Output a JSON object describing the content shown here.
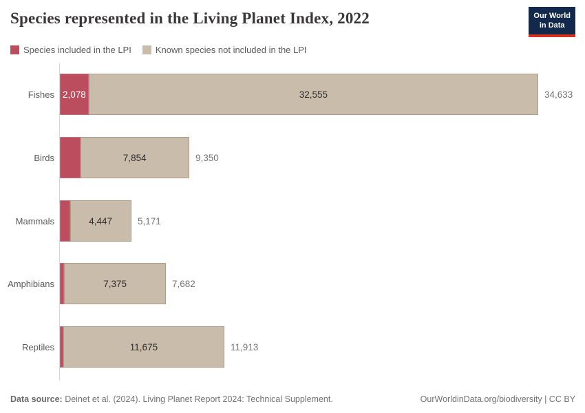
{
  "header": {
    "title": "Species represented in the Living Planet Index, 2022",
    "logo": {
      "line1": "Our World",
      "line2": "in Data"
    }
  },
  "legend": [
    {
      "label": "Species included in the LPI",
      "color": "#BC4D5E"
    },
    {
      "label": "Known species not included in the LPI",
      "color": "#CABCAB"
    }
  ],
  "chart_data": {
    "type": "bar",
    "orientation": "horizontal",
    "stacked": true,
    "title": "Species represented in the Living Planet Index, 2022",
    "categories": [
      "Fishes",
      "Birds",
      "Mammals",
      "Amphibians",
      "Reptiles"
    ],
    "series": [
      {
        "name": "Species included in the LPI",
        "color": "#BC4D5E",
        "values": [
          2078,
          1496,
          724,
          307,
          238
        ]
      },
      {
        "name": "Known species not included in the LPI",
        "color": "#CABCAB",
        "values": [
          32555,
          7854,
          4447,
          7375,
          11675
        ]
      }
    ],
    "totals": [
      34633,
      9350,
      5171,
      7682,
      11913
    ],
    "segment_labels_shown": [
      "2,078",
      "32,555",
      "7,854",
      "4,447",
      "7,375",
      "11,675"
    ],
    "total_labels_shown": [
      "34,633",
      "9,350",
      "5,171",
      "7,682",
      "11,913"
    ],
    "xlim": [
      0,
      34633
    ],
    "grid": false,
    "legend_position": "top"
  },
  "footer": {
    "source_label": "Data source:",
    "source_text": " Deinet et al. (2024). Living Planet Report 2024: Technical Supplement.",
    "link_text": "OurWorldinData.org/biodiversity | CC BY"
  },
  "colors": {
    "included": "#BC4D5E",
    "not_included": "#CABCAB",
    "axis": "#D6D6D6",
    "logo_background": "#12294B",
    "logo_stripe": "#D7301F"
  }
}
